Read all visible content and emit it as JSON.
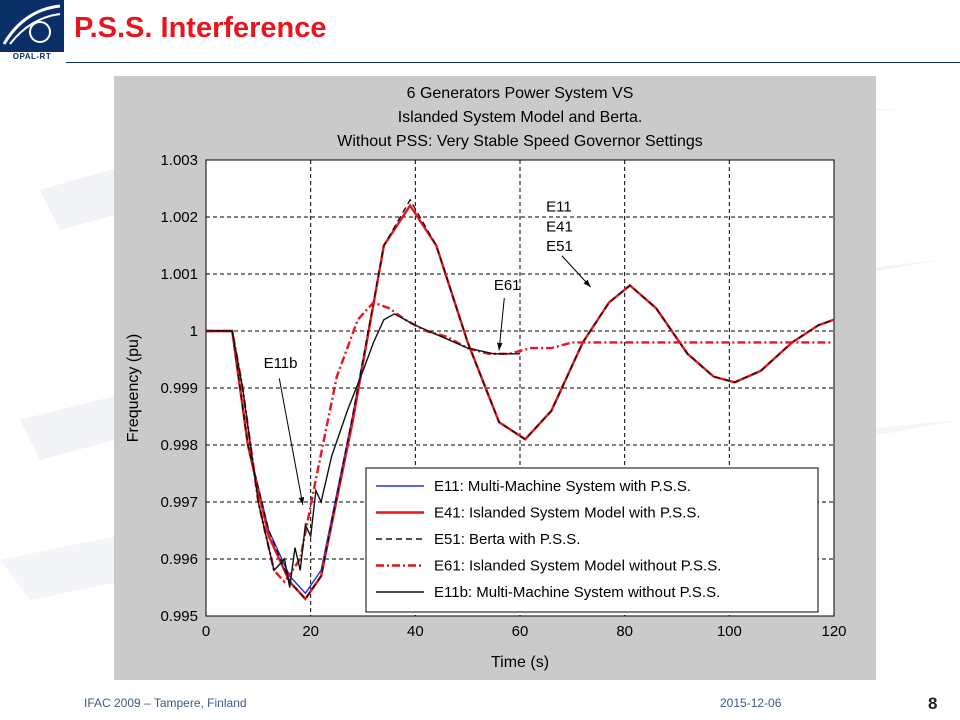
{
  "slide": {
    "logo_text": "OPAL-RT",
    "title": "P.S.S. Interference",
    "footer_left": "IFAC 2009 – Tampere, Finland",
    "footer_date": "2015-12-06",
    "page_number": "8"
  },
  "chart_data": {
    "type": "line",
    "title_lines": [
      "6 Generators Power System VS",
      "Islanded System Model and Berta.",
      "Without PSS: Very Stable Speed Governor Settings"
    ],
    "xlabel": "Time (s)",
    "ylabel": "Frequency (pu)",
    "xlim": [
      0,
      120
    ],
    "ylim": [
      0.995,
      1.003
    ],
    "xticks": [
      "0",
      "20",
      "40",
      "60",
      "80",
      "100",
      "120"
    ],
    "yticks": [
      "0.995",
      "0.996",
      "0.997",
      "0.998",
      "0.999",
      "1",
      "1.001",
      "1.002",
      "1.003"
    ],
    "grid": true,
    "legend_position": "bottom-right",
    "series": [
      {
        "name": "E11: Multi-Machine System with P.S.S.",
        "color": "#2233dd",
        "dash": "solid",
        "x": [
          0,
          5,
          8,
          12,
          16,
          19,
          22,
          28,
          34,
          39,
          44,
          50,
          56,
          61,
          66,
          72,
          77,
          81,
          86,
          92,
          97,
          101,
          106,
          112,
          117,
          120
        ],
        "y": [
          1,
          1,
          0.998,
          0.9965,
          0.9957,
          0.9954,
          0.9958,
          0.9985,
          1.0015,
          1.0022,
          1.0015,
          0.9998,
          0.9984,
          0.9981,
          0.9986,
          0.9998,
          1.0005,
          1.0008,
          1.0004,
          0.9996,
          0.9992,
          0.9991,
          0.9993,
          0.9998,
          1.0001,
          1.0002
        ]
      },
      {
        "name": "E41: Islanded System Model with P.S.S.",
        "color": "#e8141e",
        "dash": "solid",
        "x": [
          0,
          5,
          8,
          12,
          16,
          19,
          22,
          28,
          34,
          39,
          44,
          50,
          56,
          61,
          66,
          72,
          77,
          81,
          86,
          92,
          97,
          101,
          106,
          112,
          117,
          120
        ],
        "y": [
          1,
          1,
          0.998,
          0.9964,
          0.9956,
          0.9953,
          0.9957,
          0.9984,
          1.0015,
          1.0022,
          1.0015,
          0.9998,
          0.9984,
          0.9981,
          0.9986,
          0.9998,
          1.0005,
          1.0008,
          1.0004,
          0.9996,
          0.9992,
          0.9991,
          0.9993,
          0.9998,
          1.0001,
          1.0002
        ]
      },
      {
        "name": "E51: Berta with P.S.S.",
        "color": "#111111",
        "dash": "6,4",
        "x": [
          0,
          5,
          8,
          12,
          16,
          19,
          22,
          28,
          34,
          39,
          44,
          50,
          56,
          61,
          66,
          72,
          77,
          81,
          86,
          92,
          97,
          101,
          106,
          112,
          117,
          120
        ],
        "y": [
          1,
          1,
          0.998,
          0.9965,
          0.9956,
          0.9953,
          0.9957,
          0.9985,
          1.0015,
          1.0023,
          1.0015,
          0.9998,
          0.9984,
          0.9981,
          0.9986,
          0.9998,
          1.0005,
          1.0008,
          1.0004,
          0.9996,
          0.9992,
          0.9991,
          0.9993,
          0.9998,
          1.0001,
          1.0002
        ]
      },
      {
        "name": "E61: Islanded System Model without P.S.S.",
        "color": "#e8141e",
        "dash": "8,3,2,3",
        "x": [
          0,
          5,
          7,
          10,
          13,
          15,
          18,
          21,
          25,
          29,
          32,
          35,
          38,
          42,
          46,
          50,
          54,
          58,
          62,
          66,
          70,
          80,
          90,
          100,
          110,
          120
        ],
        "y": [
          1,
          1,
          0.999,
          0.997,
          0.9958,
          0.9956,
          0.996,
          0.9974,
          0.9992,
          1.0002,
          1.0005,
          1.0004,
          1.0002,
          1.0,
          0.9999,
          0.9997,
          0.9996,
          0.9996,
          0.9997,
          0.9997,
          0.9998,
          0.9998,
          0.9998,
          0.9998,
          0.9998,
          0.9998
        ]
      },
      {
        "name": "E11b: Multi-Machine System without P.S.S.",
        "color": "#111111",
        "dash": "solid",
        "x": [
          0,
          5,
          7,
          10,
          13,
          15,
          16,
          17,
          18,
          19,
          20,
          21,
          22,
          24,
          27,
          30,
          32,
          34,
          36,
          40,
          45,
          50,
          55,
          60
        ],
        "y": [
          1,
          1,
          0.999,
          0.997,
          0.9958,
          0.996,
          0.9955,
          0.9962,
          0.9958,
          0.9966,
          0.9964,
          0.9972,
          0.997,
          0.9978,
          0.9986,
          0.9993,
          0.9998,
          1.0002,
          1.0003,
          1.0001,
          0.9999,
          0.9997,
          0.9996,
          0.9996
        ]
      }
    ],
    "annotations": [
      {
        "text": "E11",
        "x": 65,
        "y": 1.0021
      },
      {
        "text": "E41",
        "x": 65,
        "y": 1.00175
      },
      {
        "text": "E51",
        "x": 65,
        "y": 1.0014
      },
      {
        "text": "E61",
        "x": 55,
        "y": 1.00072
      },
      {
        "text": "E11b",
        "x": 11,
        "y": 0.99935
      }
    ]
  }
}
